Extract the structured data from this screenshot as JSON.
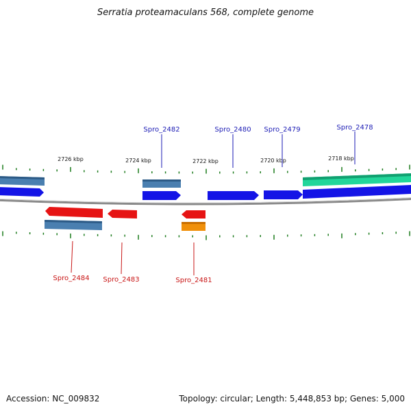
{
  "title": "Serratia proteamaculans 568, complete genome",
  "footer": {
    "accession": "Accession: NC_009832",
    "summary": "Topology: circular; Length: 5,448,853 bp; Genes: 5,000"
  },
  "colors": {
    "background": "#ffffff",
    "backbone": "#8a8a8a",
    "tick": "#1a7a1a",
    "forward_cds": "#1414e6",
    "reverse_cds": "#e61414",
    "gene_steelblue": "#4a7fb0",
    "gene_teal": "#22d69a",
    "gene_orange": "#f0900a",
    "label_forward": "#1a1ab4",
    "label_reverse": "#c81414"
  },
  "axis": {
    "ticks": [
      "2726 kbp",
      "2724 kbp",
      "2722 kbp",
      "2720 kbp",
      "2718 kbp"
    ]
  },
  "labels": {
    "forward": [
      "Spro_2482",
      "Spro_2480",
      "Spro_2479",
      "Spro_2478"
    ],
    "reverse": [
      "Spro_2484",
      "Spro_2483",
      "Spro_2481"
    ]
  }
}
